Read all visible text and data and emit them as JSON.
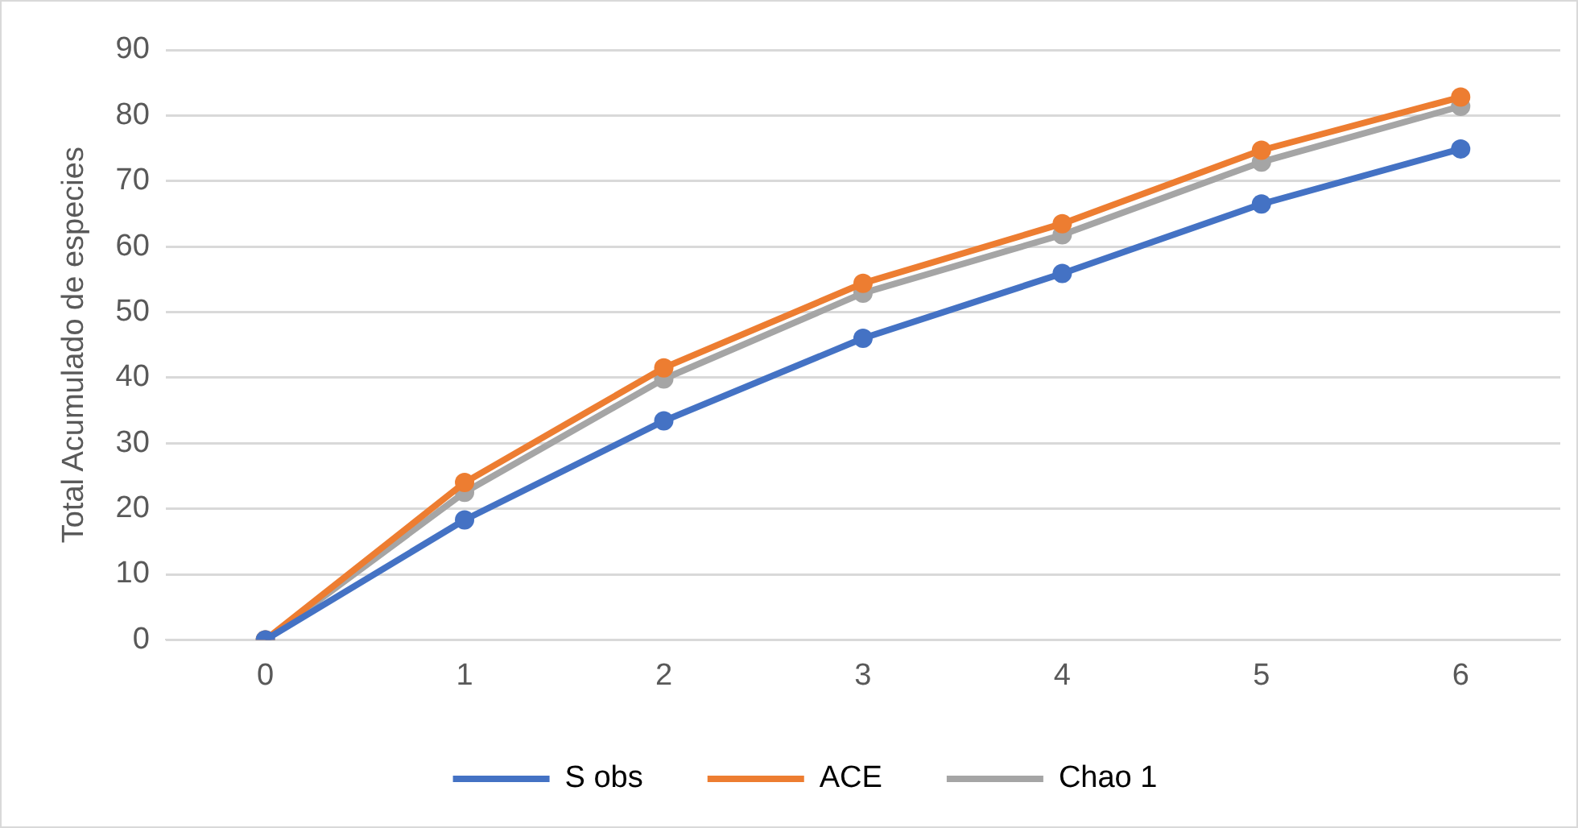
{
  "chart_data": {
    "type": "line",
    "ylabel": "Total Acumulado de especies",
    "categories": [
      "0",
      "1",
      "2",
      "3",
      "4",
      "5",
      "6"
    ],
    "series": [
      {
        "name": "S obs",
        "color": "#4472c4",
        "values": [
          0,
          18.3,
          33.4,
          46,
          55.9,
          66.5,
          74.9
        ]
      },
      {
        "name": "ACE",
        "color": "#ed7d31",
        "values": [
          0,
          24,
          41.5,
          54.4,
          63.5,
          74.7,
          82.8
        ]
      },
      {
        "name": "Chao 1",
        "color": "#a5a5a5",
        "values": [
          0,
          22.5,
          39.8,
          52.9,
          61.8,
          72.9,
          81.4
        ]
      }
    ],
    "ylim": [
      0,
      90
    ],
    "yticks": [
      0,
      10,
      20,
      30,
      40,
      50,
      60,
      70,
      80,
      90
    ],
    "grid": "y",
    "legend": "bottom",
    "marker": "circle",
    "line_style": "solid"
  }
}
